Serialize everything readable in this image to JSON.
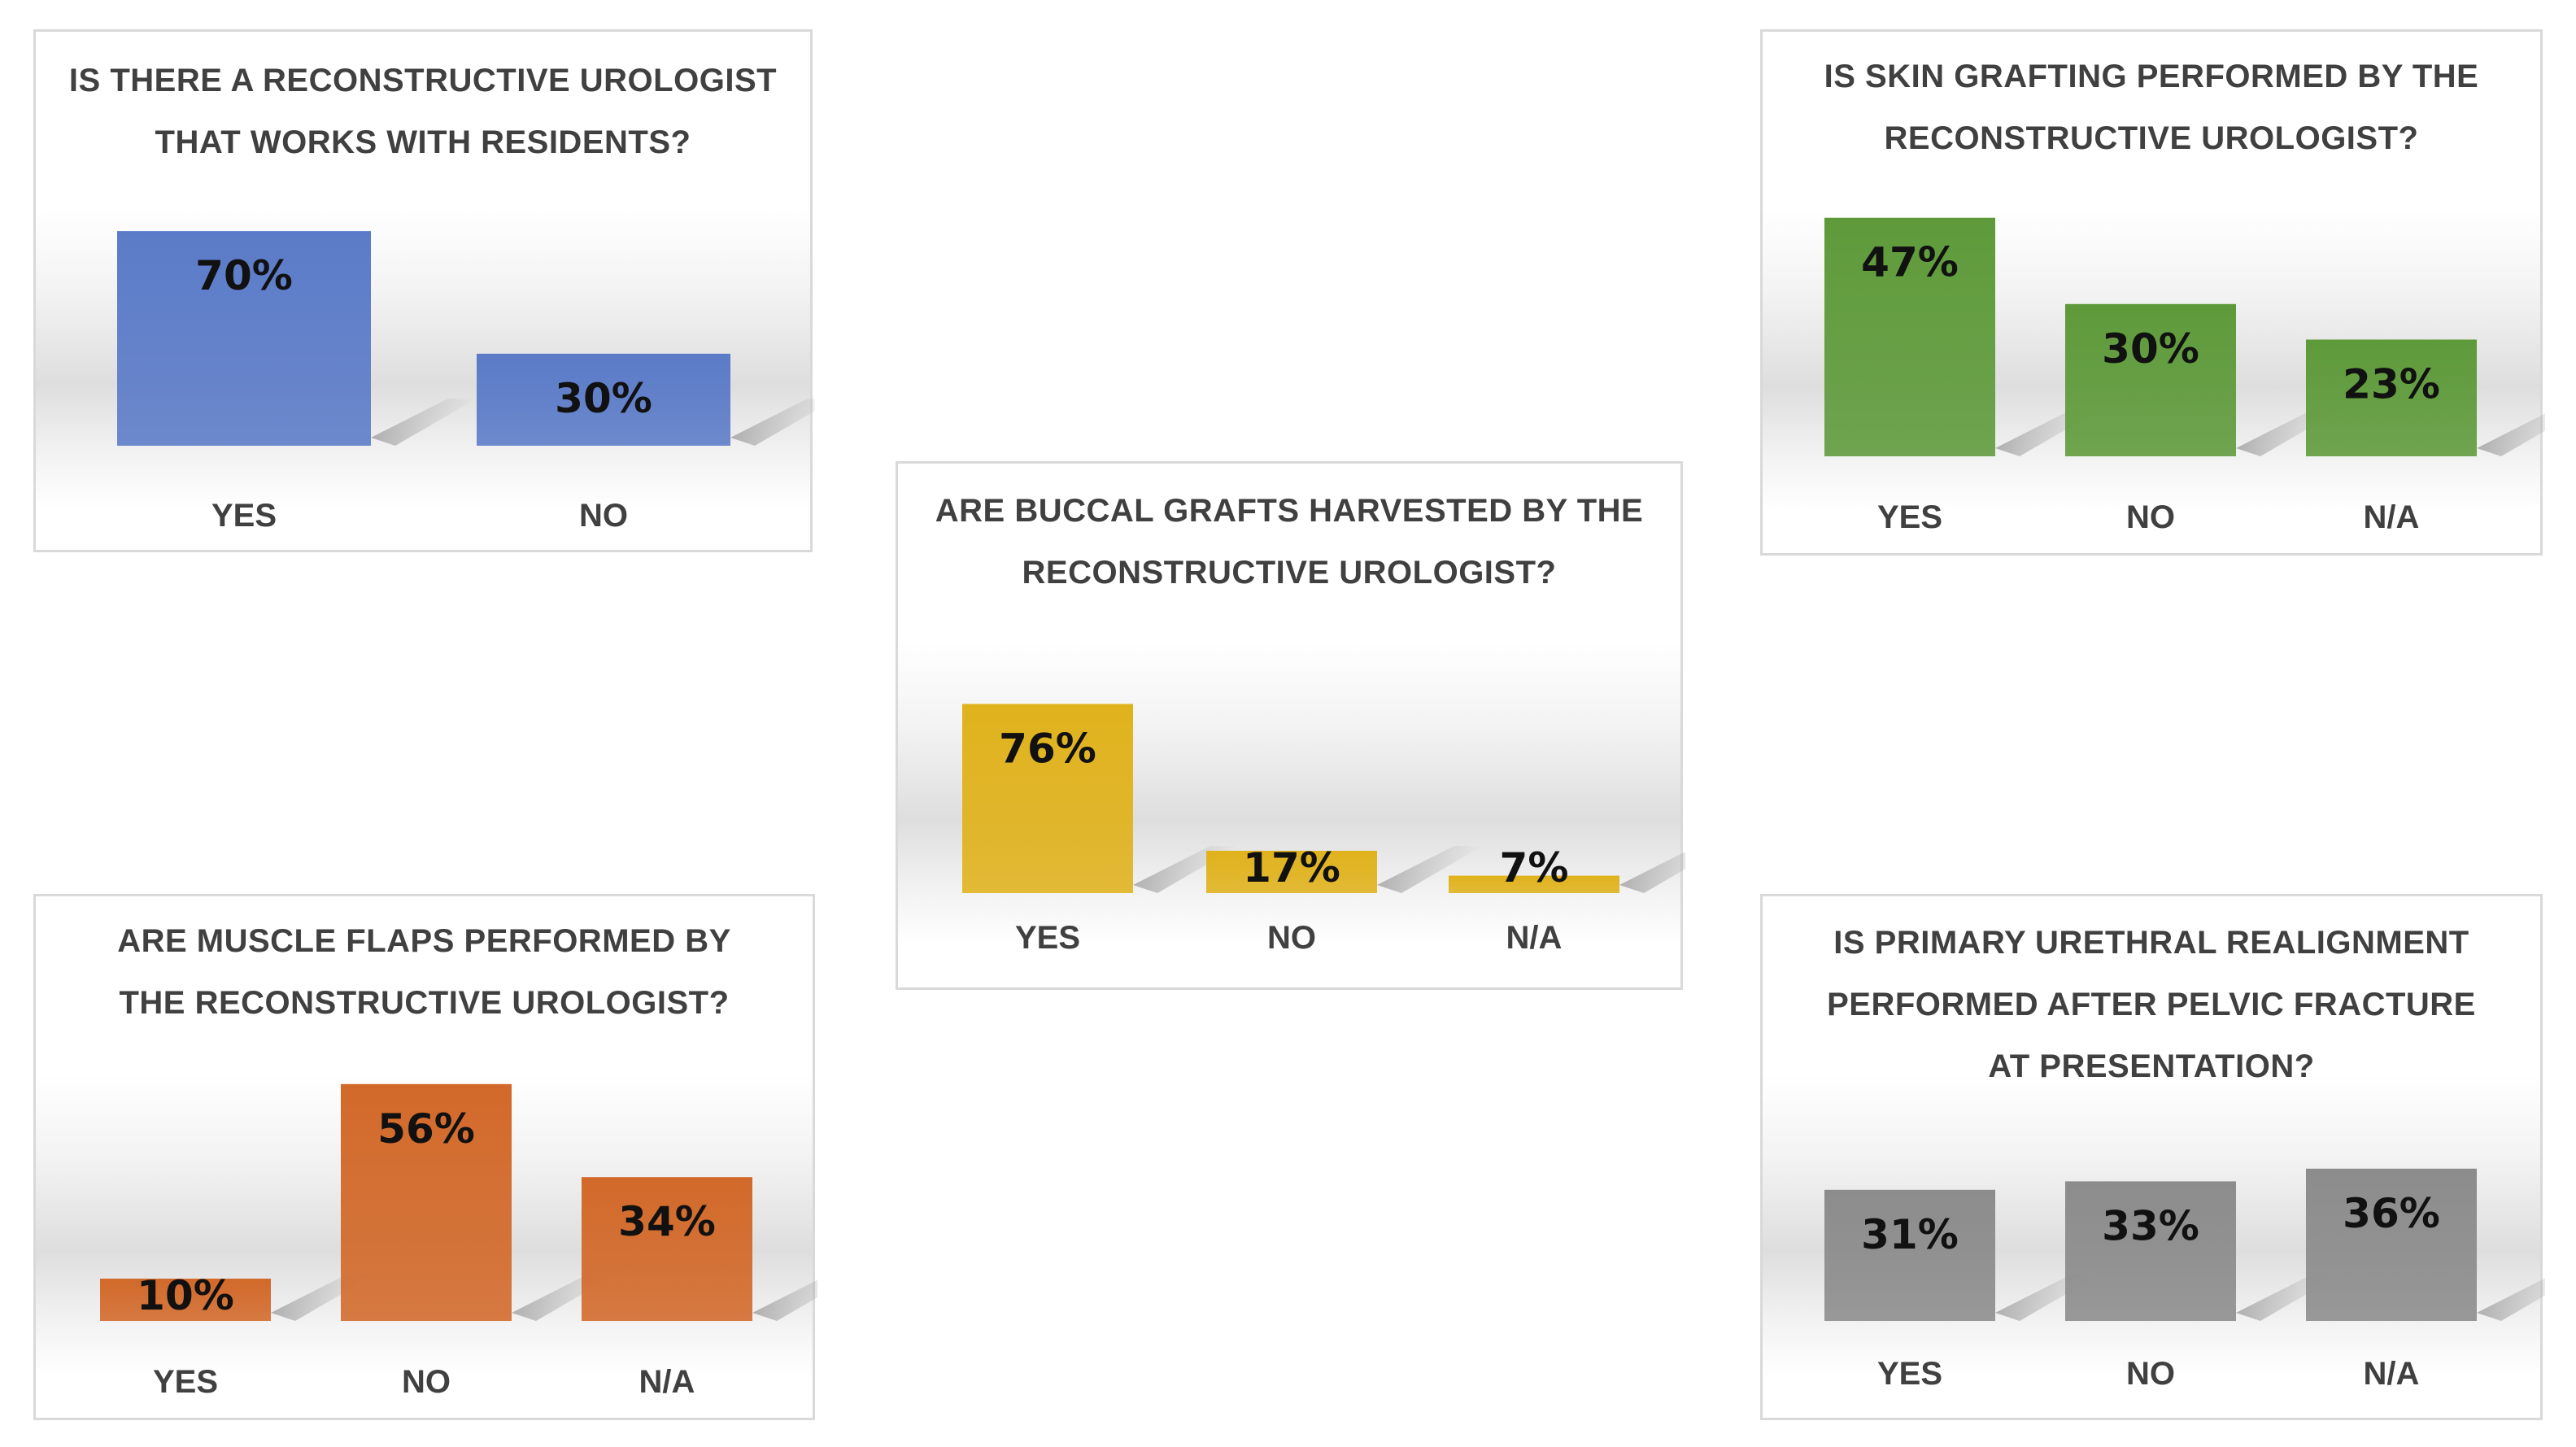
{
  "chart_data": [
    {
      "type": "bar",
      "title_lines": [
        "IS THERE A RECONSTRUCTIVE UROLOGIST",
        "THAT WORKS WITH RESIDENTS?"
      ],
      "categories": [
        "YES",
        "NO"
      ],
      "values": [
        70,
        30
      ],
      "data_labels": [
        "70%",
        "30%"
      ],
      "color": "#5b7bc8",
      "unit": "%"
    },
    {
      "type": "bar",
      "title_lines": [
        "IS SKIN GRAFTING PERFORMED BY THE",
        "RECONSTRUCTIVE UROLOGIST?"
      ],
      "categories": [
        "YES",
        "NO",
        "N/A"
      ],
      "values": [
        47,
        30,
        23
      ],
      "data_labels": [
        "47%",
        "30%",
        "23%"
      ],
      "color": "#5e9a3a",
      "unit": "%"
    },
    {
      "type": "bar",
      "title_lines": [
        "ARE BUCCAL GRAFTS HARVESTED BY THE",
        "RECONSTRUCTIVE UROLOGIST?"
      ],
      "categories": [
        "YES",
        "NO",
        "N/A"
      ],
      "values": [
        76,
        17,
        7
      ],
      "data_labels": [
        "76%",
        "17%",
        "7%"
      ],
      "color": "#e0b21c",
      "unit": "%"
    },
    {
      "type": "bar",
      "title_lines": [
        "ARE MUSCLE FLAPS PERFORMED BY",
        "THE RECONSTRUCTIVE UROLOGIST?"
      ],
      "categories": [
        "YES",
        "NO",
        "N/A"
      ],
      "values": [
        10,
        56,
        34
      ],
      "data_labels": [
        "10%",
        "56%",
        "34%"
      ],
      "color": "#d2692a",
      "unit": "%"
    },
    {
      "type": "bar",
      "title_lines": [
        "IS PRIMARY URETHRAL REALIGNMENT",
        "PERFORMED AFTER PELVIC FRACTURE",
        "AT PRESENTATION?"
      ],
      "categories": [
        "YES",
        "NO",
        "N/A"
      ],
      "values": [
        31,
        33,
        36
      ],
      "data_labels": [
        "31%",
        "33%",
        "36%"
      ],
      "color": "#8c8c8c",
      "unit": "%"
    }
  ]
}
